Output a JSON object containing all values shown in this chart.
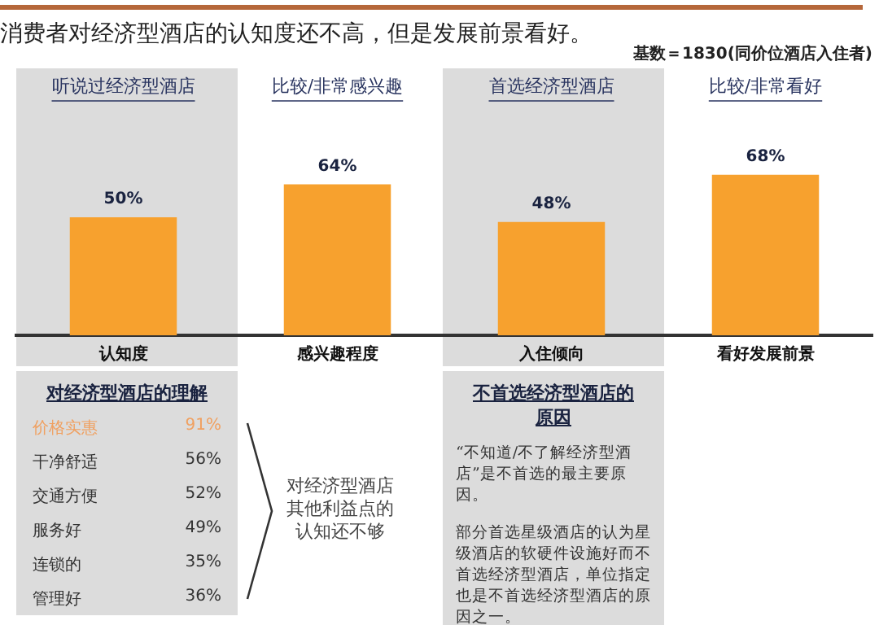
{
  "chart_data": {
    "type": "bar",
    "title": "消费者对经济型酒店的认知度还不高，但是发展前景看好。",
    "categories": [
      "认知度",
      "感兴趣程度",
      "入住倾向",
      "看好发展前景"
    ],
    "values": [
      50,
      64,
      48,
      68
    ],
    "color": "#f7a12e",
    "value_labels": [
      "50%",
      "64%",
      "48%",
      "68%"
    ],
    "tick_labels": "x",
    "grid": false,
    "legend": false,
    "annotations": [
      "听说过经济型酒店",
      "比较/非常感兴趣",
      "首选经济型酒店",
      "比较/非常看好",
      "基数＝1830(同价位酒店入住者)",
      "对经济型酒店的理解",
      "价格实惠",
      "91%",
      "干净舒适",
      "56%",
      "交通方便",
      "52%",
      "服务好",
      "49%",
      "连锁的",
      "35%",
      "管理好",
      "36%",
      "对经济型酒店其他利益点的认知还不够",
      "不首选经济型酒店的原因",
      "“不知道/不了解经济型酒店”是不首选的最主要原因。",
      "部分首选星级酒店的认为星级酒店的软硬件设施好而不首选经济型酒店，单位指定也是不首选经济型酒店的原因之一。"
    ]
  }
}
